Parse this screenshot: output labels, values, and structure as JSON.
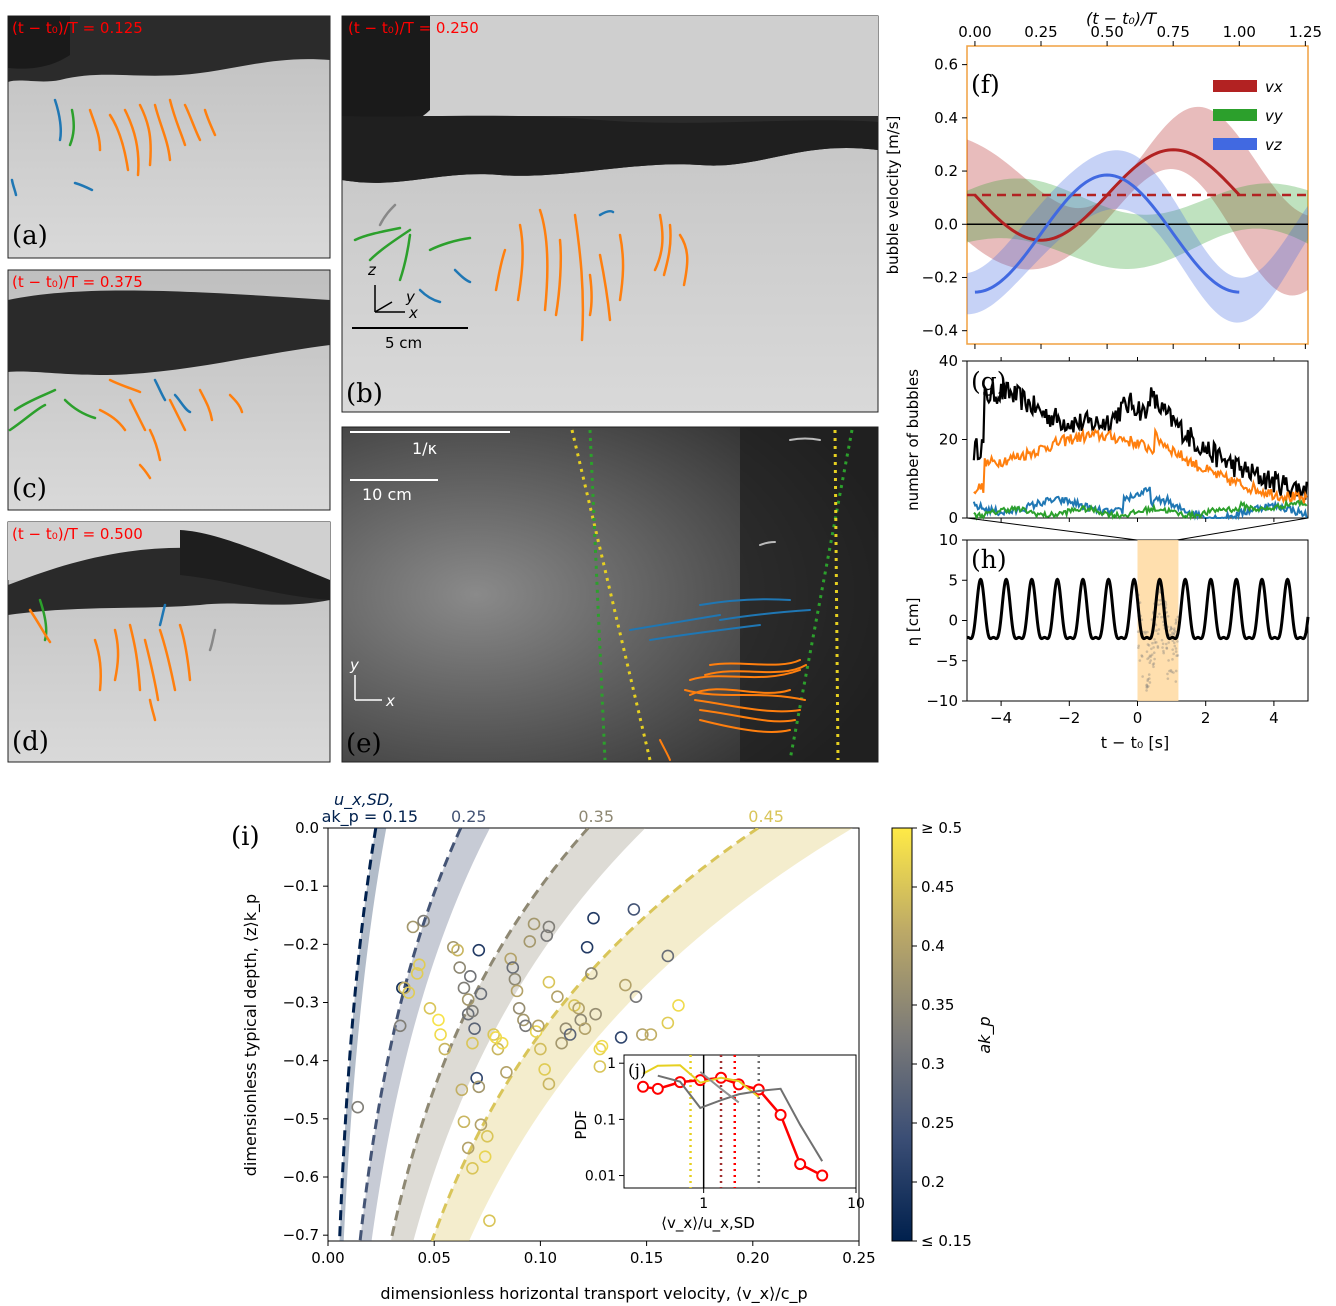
{
  "colors": {
    "orange": "#ff7f0e",
    "green": "#2ca02c",
    "blue": "#1f77b4",
    "vx": "#b22222",
    "vy": "#2ca02c",
    "vz": "#4169e1",
    "red_caption": "#ff0000",
    "highlight": "#ffd9a0",
    "frame_orange": "#f0a040"
  },
  "photos": [
    {
      "label": "(a)",
      "caption": "(t − t₀)/T = 0.125"
    },
    {
      "label": "(b)",
      "caption": "(t − t₀)/T = 0.250",
      "axes": [
        "z",
        "y",
        "x"
      ],
      "scale": "5 cm"
    },
    {
      "label": "(c)",
      "caption": "(t − t₀)/T = 0.375"
    },
    {
      "label": "(d)",
      "caption": "(t − t₀)/T = 0.500"
    },
    {
      "label": "(e)",
      "axes": [
        "y",
        "x"
      ],
      "scale": "10 cm",
      "scale_kappa": "1/κ"
    }
  ],
  "chart_data": [
    {
      "panel": "(f)",
      "type": "line",
      "xlabel_top": "(t − t₀)/T",
      "ylabel": "bubble velocity [m/s]",
      "x_ticks": [
        0.0,
        0.25,
        0.5,
        0.75,
        1.0,
        1.25
      ],
      "x_tick_labels": [
        "0.00",
        "0.25",
        "0.50",
        "0.75",
        "1.00",
        "1.25"
      ],
      "xlim": [
        -0.03,
        1.26
      ],
      "ylim": [
        -0.45,
        0.67
      ],
      "y_ticks": [
        -0.4,
        -0.2,
        0.0,
        0.2,
        0.4,
        0.6
      ],
      "y_tick_labels": [
        "−0.4",
        "−0.2",
        "0.0",
        "0.2",
        "0.4",
        "0.6"
      ],
      "legend": [
        "vx",
        "vy",
        "vz"
      ],
      "series": [
        {
          "name": "vx",
          "mean": 0.11,
          "amp": 0.17,
          "phase_peak": 0.75,
          "t_end": 1.0,
          "dashed_mean": 0.11
        },
        {
          "name": "vy",
          "band_center": 0.0,
          "band_halfwidth": 0.1
        },
        {
          "name": "vz",
          "mean": -0.035,
          "amp": 0.22,
          "phase_peak": 0.5,
          "t_end": 1.0
        }
      ]
    },
    {
      "panel": "(g)",
      "type": "line",
      "ylabel": "number of bubbles",
      "xlim": [
        -5,
        5
      ],
      "ylim": [
        0,
        40
      ],
      "y_ticks": [
        0,
        20,
        40
      ],
      "y_tick_labels": [
        "0",
        "20",
        "40"
      ],
      "series": [
        {
          "name": "total",
          "color": "#000000"
        },
        {
          "name": "orange",
          "color": "#ff7f0e"
        },
        {
          "name": "blue",
          "color": "#1f77b4"
        },
        {
          "name": "green",
          "color": "#2ca02c"
        }
      ]
    },
    {
      "panel": "(h)",
      "type": "line",
      "xlabel": "t − t₀ [s]",
      "ylabel": "η [cm]",
      "xlim": [
        -5,
        5
      ],
      "ylim": [
        -10,
        10
      ],
      "x_ticks": [
        -4,
        -2,
        0,
        2,
        4
      ],
      "x_tick_labels": [
        "−4",
        "−2",
        "0",
        "2",
        "4"
      ],
      "y_ticks": [
        -10,
        -5,
        0,
        5,
        10
      ],
      "y_tick_labels": [
        "−10",
        "−5",
        "0",
        "5",
        "10"
      ],
      "wave_period_s": 0.75,
      "wave_amp_cm": 4.8,
      "highlight_range": [
        0,
        1.2
      ]
    },
    {
      "panel": "(i)",
      "type": "scatter",
      "xlabel": "dimensionless horizontal transport velocity, ⟨v_x⟩/c_p",
      "ylabel": "dimensionless typical depth, ⟨z⟩k_p",
      "xlim": [
        0.0,
        0.25
      ],
      "ylim": [
        -0.71,
        0.0
      ],
      "x_ticks": [
        0.0,
        0.05,
        0.1,
        0.15,
        0.2,
        0.25
      ],
      "x_tick_labels": [
        "0.00",
        "0.05",
        "0.10",
        "0.15",
        "0.20",
        "0.25"
      ],
      "y_ticks": [
        0.0,
        -0.1,
        -0.2,
        -0.3,
        -0.4,
        -0.5,
        -0.6,
        -0.7
      ],
      "y_tick_labels": [
        "0.0",
        "−0.1",
        "−0.2",
        "−0.3",
        "−0.4",
        "−0.5",
        "−0.6",
        "−0.7"
      ],
      "curve_labels_title": "u_x,SD,",
      "curves": [
        {
          "label": "ak_p = 0.15",
          "x0": 0.0225,
          "ak": 0.15
        },
        {
          "label": "0.25",
          "x0": 0.0625,
          "ak": 0.25
        },
        {
          "label": "0.35",
          "x0": 0.1225,
          "ak": 0.35
        },
        {
          "label": "0.45",
          "x0": 0.2025,
          "ak": 0.45
        }
      ],
      "colorbar": {
        "label": "ak_p",
        "range": [
          0.15,
          0.5
        ],
        "ticks": [
          0.15,
          0.2,
          0.25,
          0.3,
          0.35,
          0.4,
          0.45,
          0.5
        ],
        "tick_labels": [
          "≤ 0.15",
          "0.2",
          "0.25",
          "0.3",
          "0.35",
          "0.4",
          "0.45",
          "≥ 0.5"
        ]
      },
      "points": [
        [
          0.014,
          -0.48,
          0.33
        ],
        [
          0.034,
          -0.34,
          0.33
        ],
        [
          0.035,
          -0.275,
          0.18
        ],
        [
          0.036,
          -0.275,
          0.42
        ],
        [
          0.038,
          -0.283,
          0.46
        ],
        [
          0.04,
          -0.17,
          0.38
        ],
        [
          0.042,
          -0.25,
          0.46
        ],
        [
          0.043,
          -0.235,
          0.46
        ],
        [
          0.045,
          -0.16,
          0.33
        ],
        [
          0.048,
          -0.31,
          0.45
        ],
        [
          0.052,
          -0.33,
          0.49
        ],
        [
          0.053,
          -0.355,
          0.48
        ],
        [
          0.055,
          -0.38,
          0.43
        ],
        [
          0.059,
          -0.205,
          0.38
        ],
        [
          0.061,
          -0.21,
          0.43
        ],
        [
          0.062,
          -0.24,
          0.35
        ],
        [
          0.064,
          -0.275,
          0.33
        ],
        [
          0.066,
          -0.32,
          0.3
        ],
        [
          0.066,
          -0.295,
          0.38
        ],
        [
          0.067,
          -0.255,
          0.31
        ],
        [
          0.068,
          -0.37,
          0.45
        ],
        [
          0.068,
          -0.315,
          0.33
        ],
        [
          0.069,
          -0.345,
          0.28
        ],
        [
          0.071,
          -0.21,
          0.2
        ],
        [
          0.072,
          -0.285,
          0.3
        ],
        [
          0.063,
          -0.45,
          0.42
        ],
        [
          0.064,
          -0.505,
          0.43
        ],
        [
          0.066,
          -0.55,
          0.4
        ],
        [
          0.068,
          -0.585,
          0.45
        ],
        [
          0.07,
          -0.43,
          0.22
        ],
        [
          0.071,
          -0.445,
          0.38
        ],
        [
          0.072,
          -0.51,
          0.4
        ],
        [
          0.074,
          -0.565,
          0.47
        ],
        [
          0.075,
          -0.53,
          0.45
        ],
        [
          0.076,
          -0.675,
          0.45
        ],
        [
          0.078,
          -0.355,
          0.45
        ],
        [
          0.079,
          -0.36,
          0.48
        ],
        [
          0.08,
          -0.38,
          0.43
        ],
        [
          0.082,
          -0.37,
          0.48
        ],
        [
          0.084,
          -0.42,
          0.4
        ],
        [
          0.086,
          -0.225,
          0.4
        ],
        [
          0.087,
          -0.24,
          0.3
        ],
        [
          0.088,
          -0.26,
          0.35
        ],
        [
          0.089,
          -0.28,
          0.4
        ],
        [
          0.09,
          -0.31,
          0.36
        ],
        [
          0.092,
          -0.33,
          0.38
        ],
        [
          0.093,
          -0.34,
          0.32
        ],
        [
          0.095,
          -0.195,
          0.38
        ],
        [
          0.097,
          -0.165,
          0.38
        ],
        [
          0.098,
          -0.35,
          0.47
        ],
        [
          0.099,
          -0.34,
          0.4
        ],
        [
          0.1,
          -0.38,
          0.44
        ],
        [
          0.102,
          -0.415,
          0.46
        ],
        [
          0.104,
          -0.44,
          0.43
        ],
        [
          0.104,
          -0.265,
          0.45
        ],
        [
          0.103,
          -0.185,
          0.32
        ],
        [
          0.104,
          -0.17,
          0.33
        ],
        [
          0.108,
          -0.29,
          0.4
        ],
        [
          0.11,
          -0.37,
          0.38
        ],
        [
          0.112,
          -0.345,
          0.36
        ],
        [
          0.114,
          -0.355,
          0.28
        ],
        [
          0.116,
          -0.305,
          0.45
        ],
        [
          0.118,
          -0.31,
          0.4
        ],
        [
          0.119,
          -0.33,
          0.35
        ],
        [
          0.121,
          -0.345,
          0.4
        ],
        [
          0.122,
          -0.205,
          0.2
        ],
        [
          0.124,
          -0.25,
          0.35
        ],
        [
          0.125,
          -0.155,
          0.2
        ],
        [
          0.126,
          -0.32,
          0.36
        ],
        [
          0.128,
          -0.38,
          0.47
        ],
        [
          0.129,
          -0.375,
          0.48
        ],
        [
          0.138,
          -0.36,
          0.22
        ],
        [
          0.14,
          -0.27,
          0.4
        ],
        [
          0.144,
          -0.14,
          0.25
        ],
        [
          0.145,
          -0.29,
          0.32
        ],
        [
          0.148,
          -0.355,
          0.4
        ],
        [
          0.152,
          -0.355,
          0.42
        ],
        [
          0.16,
          -0.22,
          0.3
        ],
        [
          0.16,
          -0.335,
          0.46
        ],
        [
          0.165,
          -0.305,
          0.48
        ],
        [
          0.128,
          -0.41,
          0.45
        ]
      ]
    },
    {
      "panel": "(j)",
      "type": "line",
      "xlabel": "⟨v_x⟩/u_x,SD",
      "ylabel": "PDF",
      "x_scale": "log",
      "y_scale": "log",
      "xlim": [
        0.3,
        10
      ],
      "ylim": [
        0.006,
        1.4
      ],
      "x_ticks": [
        1,
        10
      ],
      "x_tick_labels": [
        "1",
        "10"
      ],
      "y_ticks": [
        0.01,
        0.1,
        1
      ],
      "y_tick_labels": [
        "0.01",
        "0.1",
        "1"
      ],
      "series": [
        {
          "name": "red",
          "color": "#ff0000",
          "markers": true,
          "x": [
            0.4,
            0.5,
            0.7,
            0.95,
            1.3,
            1.7,
            2.3,
            3.2,
            4.3,
            6.0
          ],
          "y": [
            0.38,
            0.35,
            0.46,
            0.5,
            0.55,
            0.42,
            0.34,
            0.12,
            0.016,
            0.01
          ]
        },
        {
          "name": "yellow",
          "color": "#e6d020",
          "markers": false,
          "x": [
            0.4,
            0.5,
            0.7,
            0.95,
            1.3,
            1.7,
            2.3
          ],
          "y": [
            0.65,
            0.9,
            0.92,
            0.45,
            0.55,
            0.48,
            0.25
          ]
        },
        {
          "name": "gray",
          "color": "#707070",
          "markers": false,
          "x": [
            0.5,
            0.7,
            0.95,
            1.3,
            1.7,
            2.3,
            3.2,
            4.3,
            6.0
          ],
          "y": [
            0.6,
            0.47,
            0.16,
            0.22,
            0.28,
            0.32,
            0.35,
            0.08,
            0.018
          ]
        },
        {
          "name": "gray2",
          "color": "#909090",
          "markers": false,
          "x": [
            0.95,
            1.3,
            1.7
          ],
          "y": [
            0.7,
            0.35,
            0.2
          ]
        }
      ],
      "vlines": [
        {
          "x": 1.0,
          "style": "solid",
          "color": "#000000"
        },
        {
          "x": 0.82,
          "style": "dotted",
          "color": "#e6d020"
        },
        {
          "x": 1.3,
          "style": "dotted",
          "color": "#a03030"
        },
        {
          "x": 1.6,
          "style": "dotted",
          "color": "#ff0000"
        },
        {
          "x": 2.3,
          "style": "dotted",
          "color": "#707070"
        }
      ]
    }
  ],
  "labels": {
    "f": "(f)",
    "g": "(g)",
    "h": "(h)",
    "i": "(i)",
    "j": "(j)",
    "legend_vx": "vx",
    "legend_vy": "vy",
    "legend_vz": "vz",
    "curve_title_1": "u",
    "curve_title_sub": "x, SD",
    "curve_title_2": ","
  }
}
